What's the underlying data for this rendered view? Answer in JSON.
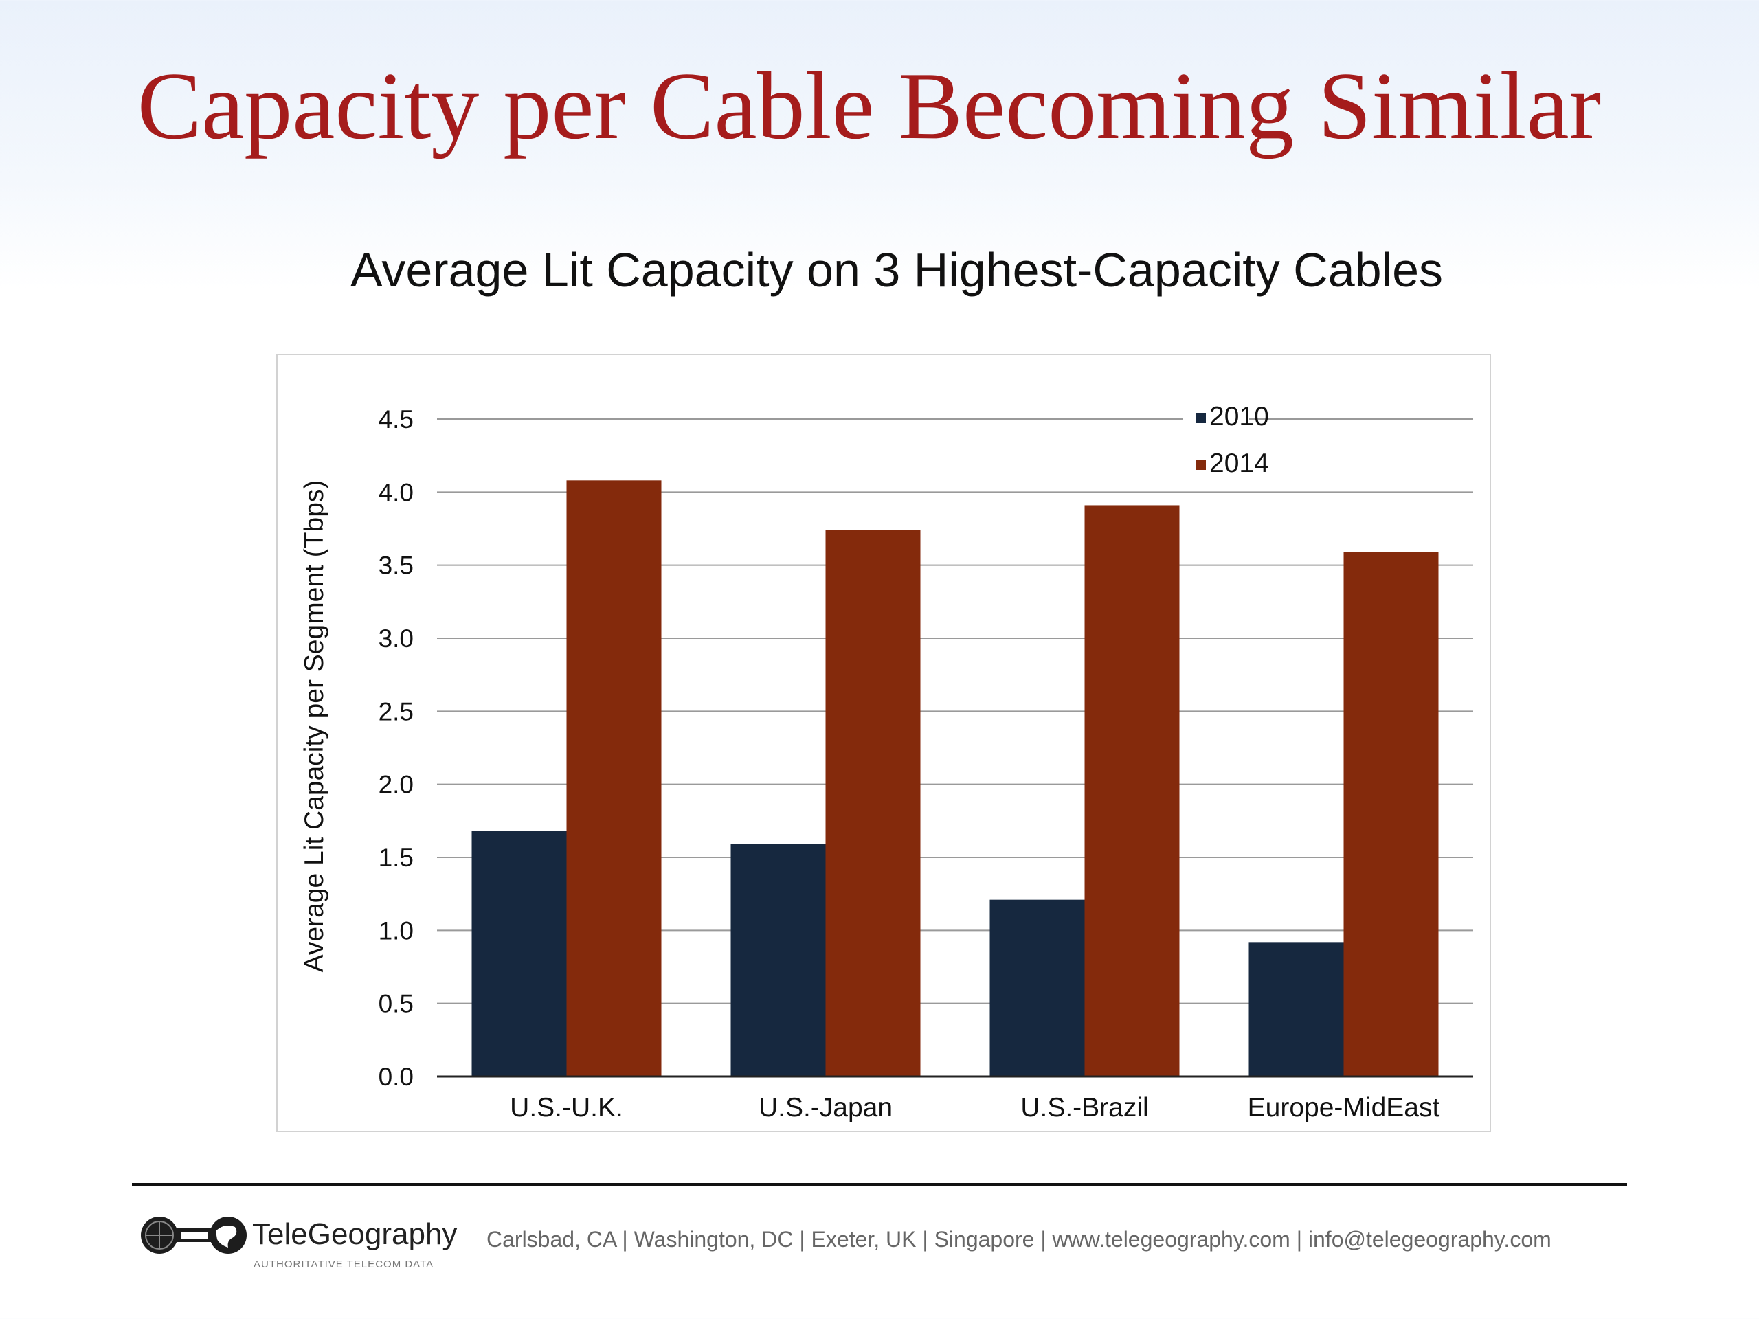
{
  "slide": {
    "title": "Capacity per Cable Becoming Similar"
  },
  "chart_data": {
    "type": "bar",
    "title": "Average Lit Capacity on 3 Highest-Capacity Cables",
    "xlabel": "",
    "ylabel": "Average Lit Capacity per Segment  (Tbps)",
    "categories": [
      "U.S.-U.K.",
      "U.S.-Japan",
      "U.S.-Brazil",
      "Europe-MidEast"
    ],
    "series": [
      {
        "name": "2010",
        "values": [
          1.68,
          1.59,
          1.21,
          0.92
        ],
        "color": "#16283f"
      },
      {
        "name": "2014",
        "values": [
          4.08,
          3.74,
          3.91,
          3.59
        ],
        "color": "#842a0c"
      }
    ],
    "ylim": [
      0,
      4.5
    ],
    "yticks": [
      "0.0",
      "0.5",
      "1.0",
      "1.5",
      "2.0",
      "2.5",
      "3.0",
      "3.5",
      "4.0",
      "4.5"
    ],
    "grid": true,
    "legend_position": "top-right"
  },
  "footer": {
    "logo_name": "TeleGeography",
    "logo_tagline": "AUTHORITATIVE TELECOM DATA",
    "contact": "Carlsbad, CA | Washington, DC | Exeter, UK | Singapore | www.telegeography.com | info@telegeography.com"
  }
}
